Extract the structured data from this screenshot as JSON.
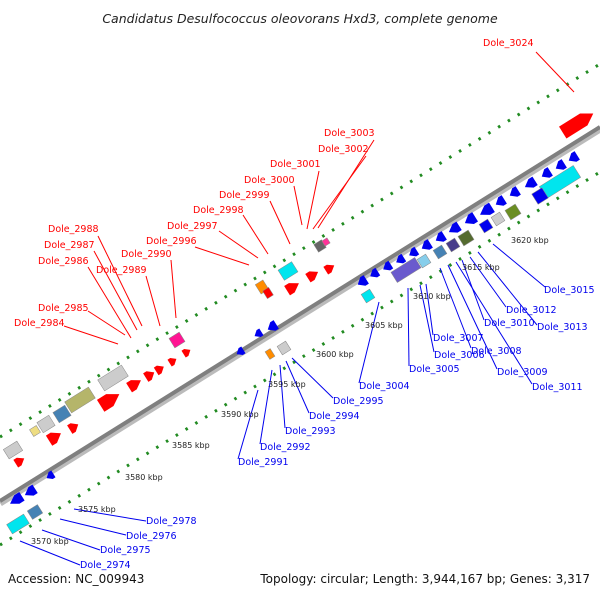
{
  "title": "Candidatus Desulfococcus oleovorans Hxd3, complete genome",
  "footer": {
    "accession": "Accession: NC_009943",
    "summary": "Topology: circular; Length: 3,944,167 bp; Genes: 3,317"
  },
  "colors": {
    "forward": "#ff0000",
    "reverse": "#0000ee",
    "backbone": "#7f7f7f",
    "tick": "#228b22"
  },
  "scale_labels": [
    "3570 kbp",
    "3575 kbp",
    "3580 kbp",
    "3585 kbp",
    "3590 kbp",
    "3595 kbp",
    "3600 kbp",
    "3605 kbp",
    "3610 kbp",
    "3615 kbp",
    "3620 kbp"
  ],
  "forward_labels": [
    "Dole_3024",
    "Dole_3003",
    "Dole_3002",
    "Dole_3001",
    "Dole_3000",
    "Dole_2999",
    "Dole_2998",
    "Dole_2997",
    "Dole_2996",
    "Dole_2990",
    "Dole_2989",
    "Dole_2988",
    "Dole_2987",
    "Dole_2986",
    "Dole_2985",
    "Dole_2984"
  ],
  "reverse_labels": [
    "Dole_3015",
    "Dole_3013",
    "Dole_3012",
    "Dole_3010",
    "Dole_3011",
    "Dole_3009",
    "Dole_3008",
    "Dole_3007",
    "Dole_3006",
    "Dole_3005",
    "Dole_3004",
    "Dole_2995",
    "Dole_2994",
    "Dole_2993",
    "Dole_2992",
    "Dole_2991",
    "Dole_2978",
    "Dole_2976",
    "Dole_2975",
    "Dole_2974"
  ]
}
